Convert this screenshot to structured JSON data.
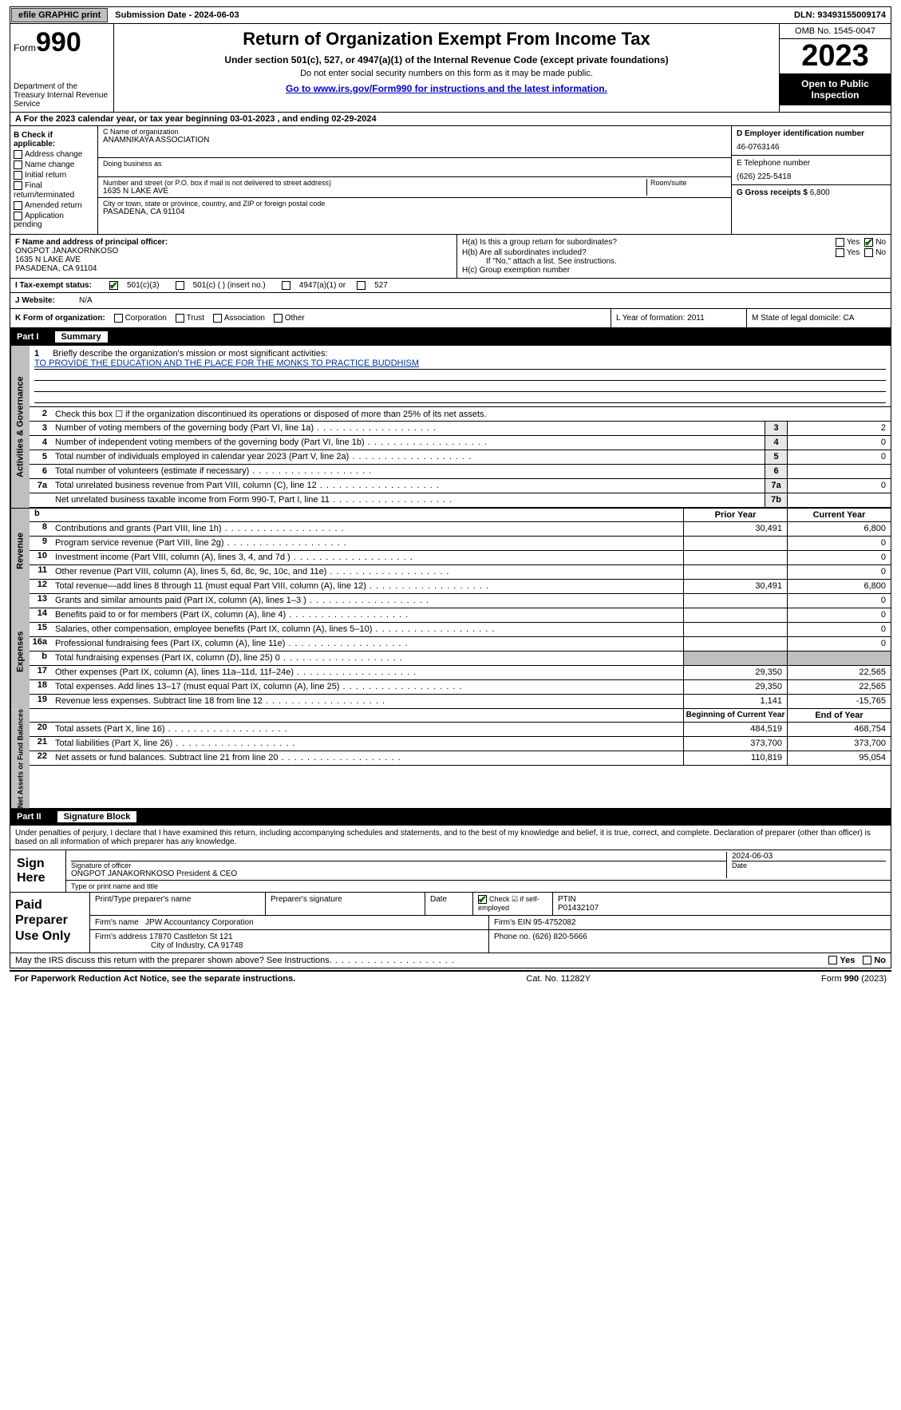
{
  "topbar": {
    "efile": "efile GRAPHIC print",
    "submission": "Submission Date - 2024-06-03",
    "dln": "DLN: 93493155009174"
  },
  "header": {
    "form_word": "Form",
    "form_num": "990",
    "title": "Return of Organization Exempt From Income Tax",
    "sub1": "Under section 501(c), 527, or 4947(a)(1) of the Internal Revenue Code (except private foundations)",
    "sub2": "Do not enter social security numbers on this form as it may be made public.",
    "goto": "Go to ",
    "link": "www.irs.gov/Form990",
    "goto2": " for instructions and the latest information.",
    "dept": "Department of the Treasury Internal Revenue Service",
    "omb": "OMB No. 1545-0047",
    "year": "2023",
    "open": "Open to Public Inspection"
  },
  "line_a": "A For the 2023 calendar year, or tax year beginning 03-01-2023    , and ending 02-29-2024",
  "col_b": {
    "hdr": "B Check if applicable:",
    "items": [
      "Address change",
      "Name change",
      "Initial return",
      "Final return/terminated",
      "Amended return",
      "Application pending"
    ]
  },
  "col_c": {
    "name_lbl": "C Name of organization",
    "name": "ANAMNIKAYA ASSOCIATION",
    "dba_lbl": "Doing business as",
    "addr_lbl": "Number and street (or P.O. box if mail is not delivered to street address)",
    "room_lbl": "Room/suite",
    "addr": "1635 N LAKE AVE",
    "city_lbl": "City or town, state or province, country, and ZIP or foreign postal code",
    "city": "PASADENA, CA  91104"
  },
  "col_d": {
    "ein_lbl": "D Employer identification number",
    "ein": "46-0763146",
    "tel_lbl": "E Telephone number",
    "tel": "(626) 225-5418",
    "gross_lbl": "G Gross receipts $",
    "gross": "6,800"
  },
  "f": {
    "lbl": "F  Name and address of principal officer:",
    "name": "ONGPOT JANAKORNKOSO",
    "addr1": "1635 N LAKE AVE",
    "addr2": "PASADENA, CA  91104"
  },
  "h": {
    "a": "H(a)  Is this a group return for subordinates?",
    "b": "H(b)  Are all subordinates included?",
    "bnote": "If \"No,\" attach a list. See instructions.",
    "c": "H(c)  Group exemption number",
    "yes": "Yes",
    "no": "No"
  },
  "tax": {
    "lbl": "I   Tax-exempt status:",
    "o1": "501(c)(3)",
    "o2": "501(c) (  ) (insert no.)",
    "o3": "4947(a)(1) or",
    "o4": "527"
  },
  "web": {
    "lbl": "J  Website:",
    "val": "N/A"
  },
  "k": {
    "lbl": "K Form of organization:",
    "opts": [
      "Corporation",
      "Trust",
      "Association",
      "Other"
    ],
    "l": "L Year of formation: 2011",
    "m": "M State of legal domicile: CA"
  },
  "part1": {
    "num": "Part I",
    "title": "Summary"
  },
  "mission": {
    "n": "1",
    "lbl": "Briefly describe the organization's mission or most significant activities:",
    "text": "TO PROVIDE THE EDUCATION AND THE PLACE FOR THE MONKS TO PRACTICE BUDDHISM"
  },
  "gov_lines": [
    {
      "n": "2",
      "t": "Check this box ☐ if the organization discontinued its operations or disposed of more than 25% of its net assets.",
      "box": "",
      "v": ""
    },
    {
      "n": "3",
      "t": "Number of voting members of the governing body (Part VI, line 1a)",
      "box": "3",
      "v": "2"
    },
    {
      "n": "4",
      "t": "Number of independent voting members of the governing body (Part VI, line 1b)",
      "box": "4",
      "v": "0"
    },
    {
      "n": "5",
      "t": "Total number of individuals employed in calendar year 2023 (Part V, line 2a)",
      "box": "5",
      "v": "0"
    },
    {
      "n": "6",
      "t": "Total number of volunteers (estimate if necessary)",
      "box": "6",
      "v": ""
    },
    {
      "n": "7a",
      "t": "Total unrelated business revenue from Part VIII, column (C), line 12",
      "box": "7a",
      "v": "0"
    },
    {
      "n": "",
      "t": "Net unrelated business taxable income from Form 990-T, Part I, line 11",
      "box": "7b",
      "v": ""
    }
  ],
  "col_hdrs": {
    "b": "b",
    "py": "Prior Year",
    "cy": "Current Year"
  },
  "rev_lines": [
    {
      "n": "8",
      "t": "Contributions and grants (Part VIII, line 1h)",
      "c1": "30,491",
      "c2": "6,800"
    },
    {
      "n": "9",
      "t": "Program service revenue (Part VIII, line 2g)",
      "c1": "",
      "c2": "0"
    },
    {
      "n": "10",
      "t": "Investment income (Part VIII, column (A), lines 3, 4, and 7d )",
      "c1": "",
      "c2": "0"
    },
    {
      "n": "11",
      "t": "Other revenue (Part VIII, column (A), lines 5, 6d, 8c, 9c, 10c, and 11e)",
      "c1": "",
      "c2": "0"
    },
    {
      "n": "12",
      "t": "Total revenue—add lines 8 through 11 (must equal Part VIII, column (A), line 12)",
      "c1": "30,491",
      "c2": "6,800"
    }
  ],
  "exp_lines": [
    {
      "n": "13",
      "t": "Grants and similar amounts paid (Part IX, column (A), lines 1–3 )",
      "c1": "",
      "c2": "0"
    },
    {
      "n": "14",
      "t": "Benefits paid to or for members (Part IX, column (A), line 4)",
      "c1": "",
      "c2": "0"
    },
    {
      "n": "15",
      "t": "Salaries, other compensation, employee benefits (Part IX, column (A), lines 5–10)",
      "c1": "",
      "c2": "0"
    },
    {
      "n": "16a",
      "t": "Professional fundraising fees (Part IX, column (A), line 11e)",
      "c1": "",
      "c2": "0"
    },
    {
      "n": "b",
      "t": "Total fundraising expenses (Part IX, column (D), line 25) 0",
      "c1": "shade",
      "c2": "shade"
    },
    {
      "n": "17",
      "t": "Other expenses (Part IX, column (A), lines 11a–11d, 11f–24e)",
      "c1": "29,350",
      "c2": "22,565"
    },
    {
      "n": "18",
      "t": "Total expenses. Add lines 13–17 (must equal Part IX, column (A), line 25)",
      "c1": "29,350",
      "c2": "22,565"
    },
    {
      "n": "19",
      "t": "Revenue less expenses. Subtract line 18 from line 12",
      "c1": "1,141",
      "c2": "-15,765"
    }
  ],
  "net_hdrs": {
    "c1": "Beginning of Current Year",
    "c2": "End of Year"
  },
  "net_lines": [
    {
      "n": "20",
      "t": "Total assets (Part X, line 16)",
      "c1": "484,519",
      "c2": "468,754"
    },
    {
      "n": "21",
      "t": "Total liabilities (Part X, line 26)",
      "c1": "373,700",
      "c2": "373,700"
    },
    {
      "n": "22",
      "t": "Net assets or fund balances. Subtract line 21 from line 20",
      "c1": "110,819",
      "c2": "95,054"
    }
  ],
  "vtabs": {
    "gov": "Activities & Governance",
    "rev": "Revenue",
    "exp": "Expenses",
    "net": "Net Assets or Fund Balances"
  },
  "part2": {
    "num": "Part II",
    "title": "Signature Block"
  },
  "sig_text": "Under penalties of perjury, I declare that I have examined this return, including accompanying schedules and statements, and to the best of my knowledge and belief, it is true, correct, and complete. Declaration of preparer (other than officer) is based on all information of which preparer has any knowledge.",
  "sign": {
    "lbl": "Sign Here",
    "sig_lbl": "Signature of officer",
    "date_lbl": "Date",
    "date": "2024-06-03",
    "name": "ONGPOT JANAKORNKOSO  President & CEO",
    "type_lbl": "Type or print name and title"
  },
  "prep": {
    "lbl": "Paid Preparer Use Only",
    "r1": {
      "a": "Print/Type preparer's name",
      "b": "Preparer's signature",
      "c": "Date",
      "d": "Check ☑ if self-employed",
      "e": "PTIN",
      "ev": "P01432107"
    },
    "r2": {
      "a": "Firm's name",
      "av": "JPW Accountancy Corporation",
      "b": "Firm's EIN",
      "bv": "95-4752082"
    },
    "r3": {
      "a": "Firm's address",
      "av1": "17870 Castleton St 121",
      "av2": "City of Industry, CA  91748",
      "b": "Phone no.",
      "bv": "(626) 820-5666"
    }
  },
  "discuss": {
    "t": "May the IRS discuss this return with the preparer shown above? See Instructions.",
    "yes": "Yes",
    "no": "No"
  },
  "footer": {
    "l": "For Paperwork Reduction Act Notice, see the separate instructions.",
    "m": "Cat. No. 11282Y",
    "r": "Form 990 (2023)"
  }
}
